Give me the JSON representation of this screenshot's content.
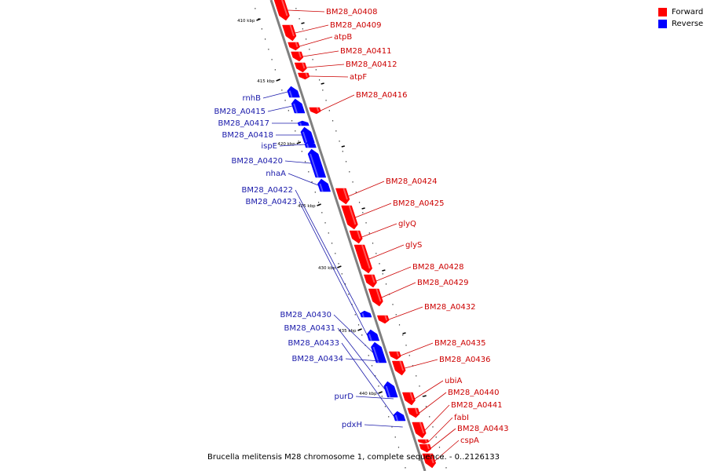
{
  "colors": {
    "forward": "#ff0000",
    "reverse": "#0000ff",
    "backbone": "#808080",
    "forward_label": "#cc0000",
    "reverse_label": "#1a1aaa"
  },
  "legend": [
    {
      "label": "Forward",
      "color": "#ff0000"
    },
    {
      "label": "Reverse",
      "color": "#0000ff"
    }
  ],
  "caption": "Brucella melitensis M28 chromosome 1, complete sequence. - 0..2126133",
  "ticks": [
    "410 kbp",
    "415 kbp",
    "420 kbp",
    "425 kbp",
    "430 kbp",
    "435 kbp",
    "440 kbp"
  ],
  "forward_genes": [
    {
      "name": "BM28_A0408"
    },
    {
      "name": "BM28_A0409"
    },
    {
      "name": "atpB"
    },
    {
      "name": "BM28_A0411"
    },
    {
      "name": "BM28_A0412"
    },
    {
      "name": "atpF"
    },
    {
      "name": "BM28_A0416"
    },
    {
      "name": "BM28_A0424"
    },
    {
      "name": "BM28_A0425"
    },
    {
      "name": "glyQ"
    },
    {
      "name": "glyS"
    },
    {
      "name": "BM28_A0428"
    },
    {
      "name": "BM28_A0429"
    },
    {
      "name": "BM28_A0432"
    },
    {
      "name": "BM28_A0435"
    },
    {
      "name": "BM28_A0436"
    },
    {
      "name": "ubiA"
    },
    {
      "name": "BM28_A0440"
    },
    {
      "name": "BM28_A0441"
    },
    {
      "name": "fabI"
    },
    {
      "name": "BM28_A0443"
    },
    {
      "name": "cspA"
    }
  ],
  "reverse_genes": [
    {
      "name": "rnhB"
    },
    {
      "name": "BM28_A0415"
    },
    {
      "name": "BM28_A0417"
    },
    {
      "name": "BM28_A0418"
    },
    {
      "name": "ispE"
    },
    {
      "name": "BM28_A0420"
    },
    {
      "name": "nhaA"
    },
    {
      "name": "BM28_A0422"
    },
    {
      "name": "BM28_A0423"
    },
    {
      "name": "BM28_A0430"
    },
    {
      "name": "BM28_A0431"
    },
    {
      "name": "BM28_A0433"
    },
    {
      "name": "BM28_A0434"
    },
    {
      "name": "purD"
    },
    {
      "name": "pdxH"
    }
  ]
}
